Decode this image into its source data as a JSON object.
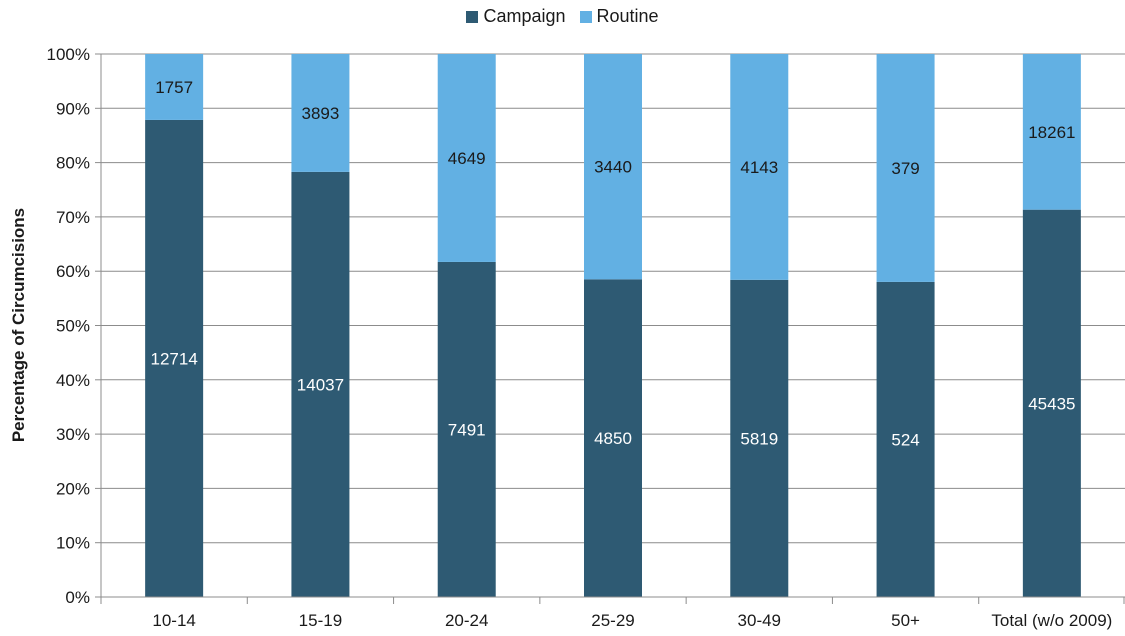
{
  "chart_data": {
    "type": "bar",
    "stacked": "percent",
    "ylabel": "Percentage of Circumcisions",
    "xlabel": "",
    "ylim": [
      0,
      100
    ],
    "yticks": [
      "0%",
      "10%",
      "20%",
      "30%",
      "40%",
      "50%",
      "60%",
      "70%",
      "80%",
      "90%",
      "100%"
    ],
    "categories": [
      "10-14",
      "15-19",
      "20-24",
      "25-29",
      "30-49",
      "50+",
      "Total (w/o 2009)"
    ],
    "series": [
      {
        "name": "Campaign",
        "color": "#2e5a73",
        "label_color": "#ffffff",
        "values": [
          12714,
          14037,
          7491,
          4850,
          5819,
          524,
          45435
        ]
      },
      {
        "name": "Routine",
        "color": "#62b0e3",
        "label_color": "#1a1a1a",
        "values": [
          1757,
          3893,
          4649,
          3440,
          4143,
          379,
          18261
        ]
      }
    ],
    "legend_position": "top-center",
    "grid": true
  }
}
